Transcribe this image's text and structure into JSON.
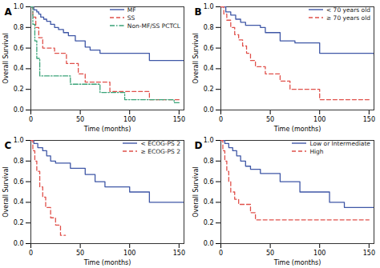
{
  "chart_data": [
    {
      "type": "line",
      "title": "A",
      "xlabel": "Time (months)",
      "ylabel": "Overall Survival",
      "xlim": [
        0,
        155
      ],
      "xticks": [
        0,
        50,
        100,
        150
      ],
      "ylim": [
        0,
        1.0
      ],
      "yticks": [
        {
          "value": 0,
          "label": "0.0"
        },
        {
          "value": 0.2,
          "label": "0.2"
        },
        {
          "value": 0.4,
          "label": "0.4"
        },
        {
          "value": 0.6,
          "label": "0.6"
        },
        {
          "value": 0.8,
          "label": "0.8"
        },
        {
          "value": 1.0,
          "label": "1.0"
        }
      ],
      "legend": "top-right",
      "series": [
        {
          "name": "MF",
          "color": "#3f57a6",
          "line_style": "solid",
          "x": [
            0,
            3,
            6,
            8,
            10,
            13,
            16,
            20,
            24,
            28,
            33,
            38,
            45,
            55,
            60,
            70,
            120,
            155
          ],
          "values": [
            1.0,
            0.97,
            0.95,
            0.93,
            0.9,
            0.88,
            0.86,
            0.83,
            0.8,
            0.78,
            0.75,
            0.72,
            0.67,
            0.61,
            0.58,
            0.55,
            0.48,
            0.48
          ]
        },
        {
          "name": "SS",
          "color": "#e0504a",
          "line_style": "dashed",
          "x": [
            0,
            2,
            5,
            8,
            12,
            24,
            36,
            48,
            55,
            80,
            120,
            150
          ],
          "values": [
            1.0,
            0.9,
            0.8,
            0.7,
            0.6,
            0.55,
            0.45,
            0.35,
            0.27,
            0.18,
            0.1,
            0.1
          ]
        },
        {
          "name": "Non-MF/SS PCTCL",
          "color": "#3aa378",
          "line_style": "dashdot",
          "x": [
            0,
            2,
            4,
            6,
            9,
            40,
            70,
            95,
            145,
            150
          ],
          "values": [
            1.0,
            0.83,
            0.67,
            0.5,
            0.33,
            0.25,
            0.17,
            0.1,
            0.07,
            0.07
          ]
        }
      ]
    },
    {
      "type": "line",
      "title": "B",
      "xlabel": "Time (months)",
      "ylabel": "Overall Survival",
      "xlim": [
        0,
        155
      ],
      "xticks": [
        0,
        50,
        100,
        150
      ],
      "ylim": [
        0,
        1.0
      ],
      "yticks": [
        {
          "value": 0,
          "label": "0.0"
        },
        {
          "value": 0.2,
          "label": "0.2"
        },
        {
          "value": 0.4,
          "label": "0.4"
        },
        {
          "value": 0.6,
          "label": "0.6"
        },
        {
          "value": 0.8,
          "label": "0.8"
        },
        {
          "value": 1.0,
          "label": "1.0"
        }
      ],
      "legend": "top-right",
      "series": [
        {
          "name": "< 70 years old",
          "color": "#3f57a6",
          "line_style": "solid",
          "x": [
            0,
            5,
            10,
            15,
            20,
            25,
            40,
            45,
            60,
            75,
            100,
            155
          ],
          "values": [
            1.0,
            0.95,
            0.92,
            0.88,
            0.85,
            0.82,
            0.8,
            0.75,
            0.67,
            0.65,
            0.55,
            0.53
          ]
        },
        {
          "name": "≥ 70 years old",
          "color": "#e0504a",
          "line_style": "dashed",
          "x": [
            0,
            3,
            6,
            10,
            14,
            18,
            22,
            26,
            30,
            35,
            45,
            60,
            70,
            100,
            150
          ],
          "values": [
            1.0,
            0.93,
            0.87,
            0.8,
            0.73,
            0.68,
            0.62,
            0.55,
            0.48,
            0.42,
            0.35,
            0.28,
            0.2,
            0.1,
            0.1
          ]
        }
      ]
    },
    {
      "type": "line",
      "title": "C",
      "xlabel": "Time (months)",
      "ylabel": "Overall Survival",
      "xlim": [
        0,
        155
      ],
      "xticks": [
        0,
        50,
        100,
        150
      ],
      "ylim": [
        0,
        1.0
      ],
      "yticks": [
        {
          "value": 0,
          "label": "0.0"
        },
        {
          "value": 0.2,
          "label": "0.2"
        },
        {
          "value": 0.4,
          "label": "0.4"
        },
        {
          "value": 0.6,
          "label": "0.6"
        },
        {
          "value": 0.8,
          "label": "0.8"
        },
        {
          "value": 1.0,
          "label": "1.0"
        }
      ],
      "legend": "top-right",
      "series": [
        {
          "name": "< ECOG-PS 2",
          "color": "#3f57a6",
          "line_style": "solid",
          "x": [
            0,
            3,
            7,
            12,
            16,
            20,
            25,
            40,
            55,
            65,
            75,
            100,
            120,
            155
          ],
          "values": [
            1.0,
            0.97,
            0.93,
            0.9,
            0.85,
            0.8,
            0.78,
            0.73,
            0.67,
            0.6,
            0.55,
            0.5,
            0.4,
            0.4
          ]
        },
        {
          "name": "≥ ECOG-PS 2",
          "color": "#e0504a",
          "line_style": "dashed",
          "x": [
            0,
            2,
            4,
            6,
            9,
            12,
            15,
            20,
            25,
            30,
            35
          ],
          "values": [
            1.0,
            0.9,
            0.8,
            0.7,
            0.55,
            0.45,
            0.35,
            0.25,
            0.18,
            0.08,
            0.08
          ]
        }
      ]
    },
    {
      "type": "line",
      "title": "D",
      "xlabel": "Time (months)",
      "ylabel": "Overall Survival",
      "xlim": [
        0,
        155
      ],
      "xticks": [
        0,
        50,
        100,
        150
      ],
      "ylim": [
        0,
        1.0
      ],
      "yticks": [
        {
          "value": 0,
          "label": "0.0"
        },
        {
          "value": 0.2,
          "label": "0.2"
        },
        {
          "value": 0.4,
          "label": "0.4"
        },
        {
          "value": 0.6,
          "label": "0.6"
        },
        {
          "value": 0.8,
          "label": "0.8"
        },
        {
          "value": 1.0,
          "label": "1.0"
        }
      ],
      "legend": "top-right",
      "series": [
        {
          "name": "Low or Intermediate",
          "color": "#3f57a6",
          "line_style": "solid",
          "x": [
            0,
            4,
            8,
            12,
            16,
            20,
            25,
            30,
            40,
            60,
            80,
            110,
            125,
            155
          ],
          "values": [
            1.0,
            0.97,
            0.93,
            0.9,
            0.85,
            0.8,
            0.75,
            0.72,
            0.68,
            0.6,
            0.5,
            0.4,
            0.35,
            0.35
          ]
        },
        {
          "name": "High",
          "color": "#e0504a",
          "line_style": "dashed",
          "x": [
            0,
            2,
            4,
            6,
            8,
            10,
            14,
            18,
            25,
            30,
            35,
            150
          ],
          "values": [
            1.0,
            0.9,
            0.8,
            0.7,
            0.6,
            0.5,
            0.43,
            0.38,
            0.38,
            0.3,
            0.23,
            0.23
          ]
        }
      ]
    }
  ]
}
